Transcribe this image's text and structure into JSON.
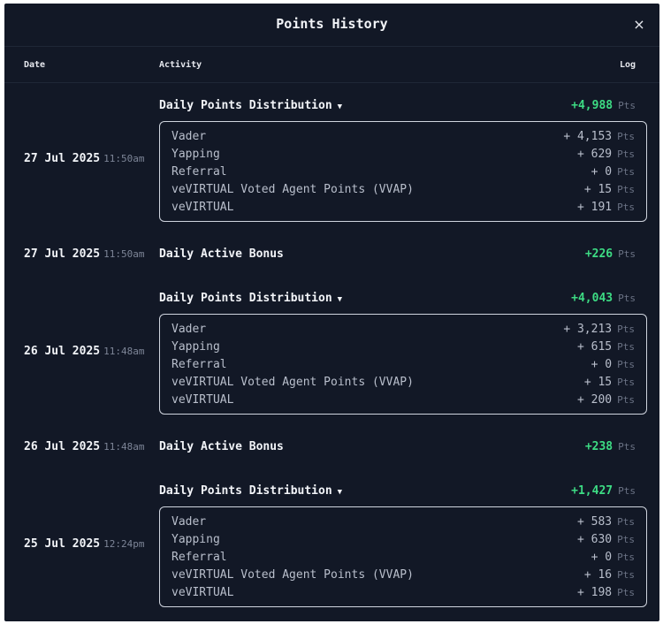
{
  "header": {
    "title": "Points History",
    "close_label": "×"
  },
  "columns": {
    "date": "Date",
    "activity": "Activity",
    "log": "Log"
  },
  "pts_unit": "Pts",
  "entries": [
    {
      "date": "27 Jul 2025",
      "time": "11:50am",
      "activity": "Daily Points Distribution",
      "caret": "▼",
      "total": "+4,988",
      "breakdown": [
        {
          "label": "Vader",
          "value": "+ 4,153"
        },
        {
          "label": "Yapping",
          "value": "+ 629"
        },
        {
          "label": "Referral",
          "value": "+ 0"
        },
        {
          "label": "veVIRTUAL Voted Agent Points (VVAP)",
          "value": "+ 15"
        },
        {
          "label": "veVIRTUAL",
          "value": "+ 191"
        }
      ]
    },
    {
      "date": "27 Jul 2025",
      "time": "11:50am",
      "activity": "Daily Active Bonus",
      "total": "+226"
    },
    {
      "date": "26 Jul 2025",
      "time": "11:48am",
      "activity": "Daily Points Distribution",
      "caret": "▼",
      "total": "+4,043",
      "breakdown": [
        {
          "label": "Vader",
          "value": "+ 3,213"
        },
        {
          "label": "Yapping",
          "value": "+ 615"
        },
        {
          "label": "Referral",
          "value": "+ 0"
        },
        {
          "label": "veVIRTUAL Voted Agent Points (VVAP)",
          "value": "+ 15"
        },
        {
          "label": "veVIRTUAL",
          "value": "+ 200"
        }
      ]
    },
    {
      "date": "26 Jul 2025",
      "time": "11:48am",
      "activity": "Daily Active Bonus",
      "total": "+238"
    },
    {
      "date": "25 Jul 2025",
      "time": "12:24pm",
      "activity": "Daily Points Distribution",
      "caret": "▼",
      "total": "+1,427",
      "breakdown": [
        {
          "label": "Vader",
          "value": "+ 583"
        },
        {
          "label": "Yapping",
          "value": "+ 630"
        },
        {
          "label": "Referral",
          "value": "+ 0"
        },
        {
          "label": "veVIRTUAL Voted Agent Points (VVAP)",
          "value": "+ 16"
        },
        {
          "label": "veVIRTUAL",
          "value": "+ 198"
        }
      ]
    }
  ]
}
